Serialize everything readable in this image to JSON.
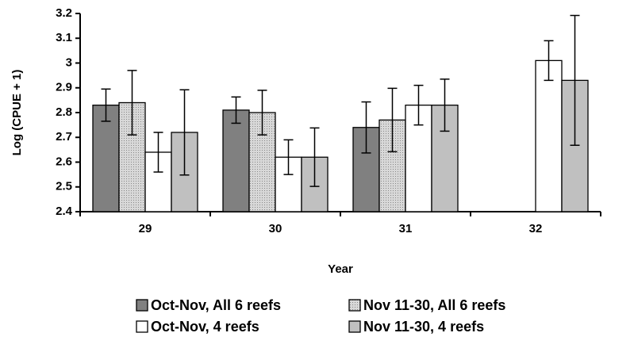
{
  "chart_data": {
    "type": "bar",
    "x_label": "Year",
    "y_label": "Log (CPUE + 1)",
    "categories": [
      "29",
      "30",
      "31",
      "32"
    ],
    "series": [
      {
        "name": "Oct-Nov, All 6 reefs",
        "color": "#808080",
        "values": [
          2.83,
          2.81,
          2.74,
          null
        ],
        "errors": [
          0.065,
          0.053,
          0.103,
          null
        ]
      },
      {
        "name": "Nov 11-30, All 6 reefs",
        "color": "#c8c8c8",
        "pattern": "dotted",
        "values": [
          2.84,
          2.8,
          2.77,
          null
        ],
        "errors": [
          0.13,
          0.09,
          0.128,
          null
        ]
      },
      {
        "name": "Oct-Nov, 4 reefs",
        "color": "#ffffff",
        "values": [
          2.64,
          2.62,
          2.83,
          3.01
        ],
        "errors": [
          0.08,
          0.07,
          0.08,
          0.08
        ]
      },
      {
        "name": "Nov 11-30, 4 reefs",
        "color": "#c0c0c0",
        "values": [
          2.72,
          2.62,
          2.83,
          2.93
        ],
        "errors": [
          0.172,
          0.118,
          0.105,
          0.262
        ]
      }
    ],
    "ylim": [
      2.4,
      3.2
    ],
    "yticks": [
      2.4,
      2.5,
      2.6,
      2.7,
      2.8,
      2.9,
      3,
      3.1,
      3.2
    ],
    "grid": false
  }
}
